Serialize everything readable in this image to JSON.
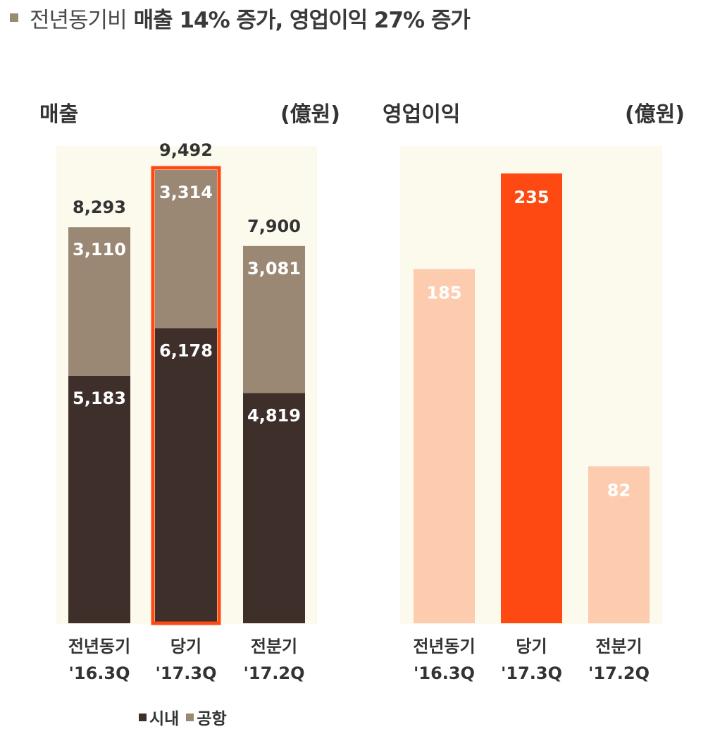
{
  "headline": {
    "part1": "전년동기비",
    "part2": "매출 14% 증가, 영업이익 27% 증가"
  },
  "legend": {
    "domestic": "시내",
    "airport": "공항"
  },
  "colors": {
    "domestic": "#3e2f2b",
    "airport": "#9a8874",
    "panel_bg": "#fcf9ed",
    "highlight": "#fe4a12",
    "profit_light": "#fdcbae"
  },
  "chart_data": [
    {
      "type": "bar",
      "stacked": true,
      "title": "매출",
      "unit": "(億원)",
      "categories": [
        {
          "line1": "전년동기",
          "line2": "'16.3Q"
        },
        {
          "line1": "당기",
          "line2": "'17.3Q"
        },
        {
          "line1": "전분기",
          "line2": "'17.2Q"
        }
      ],
      "series": [
        {
          "name": "시내",
          "values": [
            5183,
            6178,
            4819
          ],
          "labels": [
            "5,183",
            "6,178",
            "4,819"
          ]
        },
        {
          "name": "공항",
          "values": [
            3110,
            3314,
            3081
          ],
          "labels": [
            "3,110",
            "3,314",
            "3,081"
          ]
        }
      ],
      "totals": [
        8293,
        9492,
        7900
      ],
      "total_labels": [
        "8,293",
        "9,492",
        "7,900"
      ],
      "highlight_index": 1,
      "ylim": [
        0,
        10000
      ]
    },
    {
      "type": "bar",
      "title": "영업이익",
      "unit": "(億원)",
      "categories": [
        {
          "line1": "전년동기",
          "line2": "'16.3Q"
        },
        {
          "line1": "당기",
          "line2": "'17.3Q"
        },
        {
          "line1": "전분기",
          "line2": "'17.2Q"
        }
      ],
      "values": [
        185,
        235,
        82
      ],
      "labels": [
        "185",
        "235",
        "82"
      ],
      "highlight_index": 1,
      "ylim": [
        0,
        250
      ]
    }
  ]
}
